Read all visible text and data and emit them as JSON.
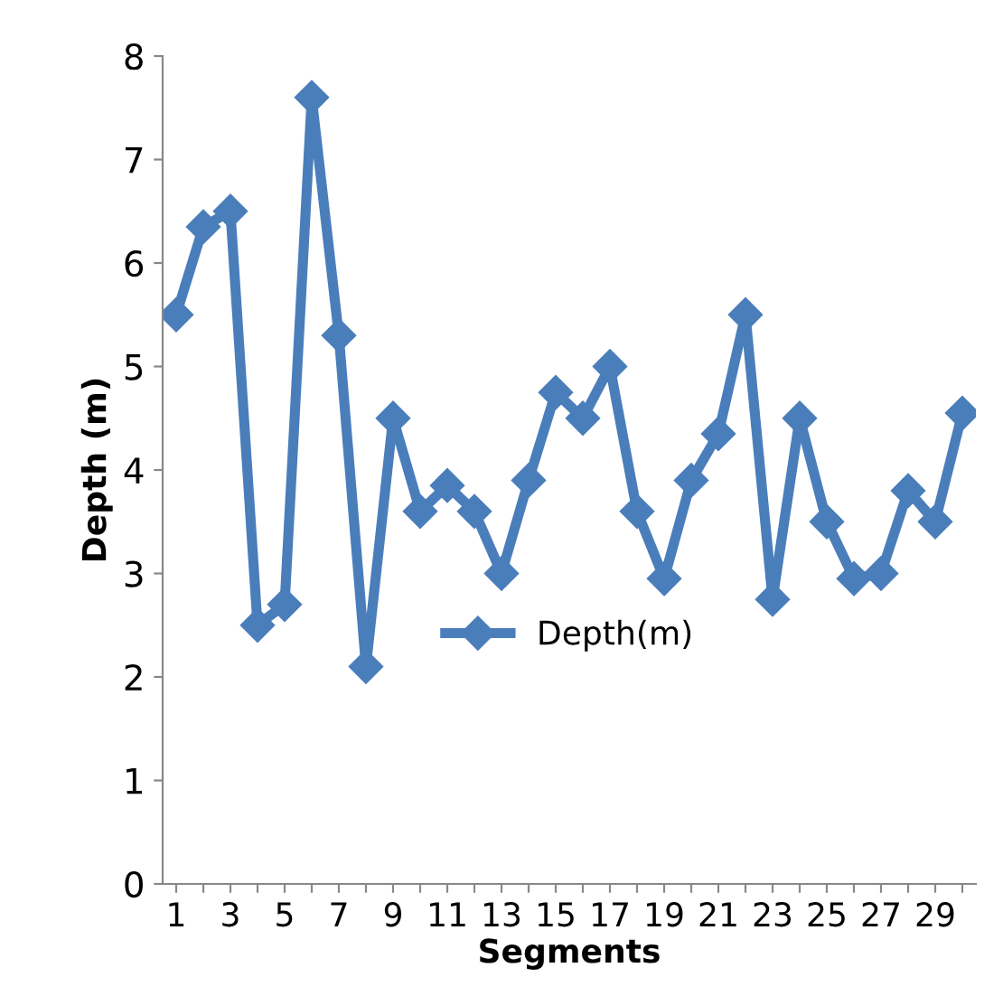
{
  "chart_data": {
    "type": "line",
    "xlabel": "Segments",
    "ylabel": "Depth (m)",
    "categories": [
      "1",
      null,
      "3",
      null,
      "5",
      null,
      "7",
      null,
      "9",
      null,
      "11",
      null,
      "13",
      null,
      "15",
      null,
      "17",
      null,
      "19",
      null,
      "21",
      null,
      "23",
      null,
      "25",
      null,
      "27",
      null,
      "29",
      null
    ],
    "series": [
      {
        "name": "Depth(m)",
        "color": "#4a7ebb",
        "values": [
          5.5,
          6.35,
          6.5,
          2.5,
          2.7,
          7.6,
          5.3,
          2.1,
          4.5,
          3.6,
          3.85,
          3.6,
          3.0,
          3.9,
          4.75,
          4.5,
          5.0,
          3.6,
          2.95,
          3.9,
          4.35,
          5.5,
          2.75,
          4.5,
          3.5,
          2.95,
          3.0,
          3.8,
          3.5,
          4.55
        ]
      }
    ],
    "ylim": [
      0,
      8
    ],
    "yticks": [
      0,
      1,
      2,
      3,
      4,
      5,
      6,
      7,
      8
    ],
    "marker": "diamond",
    "line_style": "solid",
    "legend": "center",
    "grid": false
  }
}
